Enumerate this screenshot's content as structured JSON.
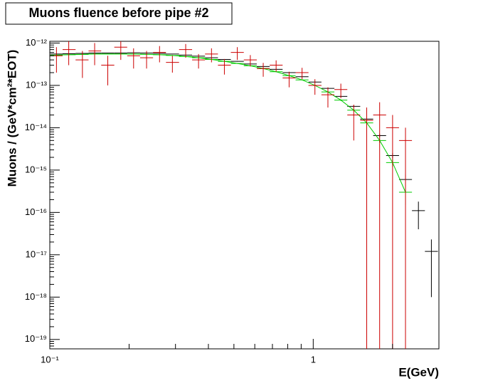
{
  "chart_data": {
    "type": "errorbar",
    "title": "Muons fluence before pipe #2",
    "x_label": "E(GeV)",
    "y_label": "Muons / (GeV*cm²*EOT)",
    "logx": true,
    "logy": true,
    "grid": false,
    "xlim": [
      0.1,
      3
    ],
    "ylim": [
      6e-20,
      1.1e-12
    ],
    "xticks": [
      {
        "value": 0.1,
        "label": "10⁻¹"
      },
      1
    ],
    "yticks": [
      {
        "value": 1e-19,
        "label": "10⁻¹⁹"
      },
      {
        "value": 1e-18,
        "label": "10⁻¹⁸"
      },
      {
        "value": 1e-17,
        "label": "10⁻¹⁷"
      },
      {
        "value": 1e-16,
        "label": "10⁻¹⁶"
      },
      {
        "value": 1e-15,
        "label": "10⁻¹⁵"
      },
      {
        "value": 1e-14,
        "label": "10⁻¹⁴"
      },
      {
        "value": 1e-13,
        "label": "10⁻¹³"
      },
      {
        "value": 1e-12,
        "label": "10⁻¹²"
      }
    ],
    "x": [
      0.106,
      0.118,
      0.133,
      0.148,
      0.166,
      0.186,
      0.208,
      0.233,
      0.261,
      0.292,
      0.328,
      0.367,
      0.411,
      0.46,
      0.515,
      0.577,
      0.646,
      0.723,
      0.81,
      0.907,
      1.015,
      1.137,
      1.273,
      1.425,
      1.596,
      1.787,
      2.001,
      2.24,
      2.508,
      2.809
    ],
    "series": [
      {
        "color": "#000000",
        "connect": false,
        "values": [
          5.5e-13,
          5.6e-13,
          5.7e-13,
          5.8e-13,
          5.8e-13,
          5.8e-13,
          5.9e-13,
          5.8e-13,
          5.7e-13,
          5.5e-13,
          5.2e-13,
          4.9e-13,
          4.5e-13,
          4.1e-13,
          3.7e-13,
          3.2e-13,
          2.8e-13,
          2.4e-13,
          2e-13,
          1.6e-13,
          1.2e-13,
          8.5e-14,
          5.5e-14,
          3.2e-14,
          1.6e-14,
          6.5e-15,
          2.2e-15,
          6e-16,
          1.1e-16,
          1.2e-17
        ],
        "errors": [
          1.5e-14,
          1.4e-14,
          1.3e-14,
          1.2e-14,
          1.1e-14,
          1e-14,
          1e-14,
          9e-15,
          9e-15,
          8e-15,
          8e-15,
          7e-15,
          7e-15,
          6e-15,
          6e-15,
          5e-15,
          5e-15,
          4e-15,
          4e-15,
          3e-15,
          3e-15,
          2.5e-15,
          2e-15,
          1.5e-15,
          1e-15,
          6e-16,
          3e-16,
          2e-16,
          7e-17,
          1.1e-17
        ]
      },
      {
        "color": "#00cc00",
        "connect": true,
        "values": [
          5.2e-13,
          5.3e-13,
          5.4e-13,
          5.5e-13,
          5.5e-13,
          5.5e-13,
          5.5e-13,
          5.4e-13,
          5.3e-13,
          5.1e-13,
          4.8e-13,
          4.5e-13,
          4.1e-13,
          3.7e-13,
          3.3e-13,
          2.9e-13,
          2.5e-13,
          2.1e-13,
          1.7e-13,
          1.35e-13,
          1e-13,
          7e-14,
          4.5e-14,
          2.6e-14,
          1.3e-14,
          5e-15,
          1.5e-15,
          3e-16,
          null,
          null
        ],
        "errors": [
          1.2e-14,
          1.2e-14,
          1.1e-14,
          1.1e-14,
          1e-14,
          1e-14,
          1e-14,
          9e-15,
          9e-15,
          8e-15,
          8e-15,
          7e-15,
          7e-15,
          6e-15,
          6e-15,
          5e-15,
          5e-15,
          4e-15,
          4e-15,
          3e-15,
          3e-15,
          2.5e-15,
          2e-15,
          1.5e-15,
          1e-15,
          6e-16,
          3e-16,
          1.5e-16,
          null,
          null
        ]
      },
      {
        "color": "#cc0000",
        "connect": false,
        "values": [
          5e-13,
          7e-13,
          4e-13,
          6.5e-13,
          3e-13,
          8e-13,
          5e-13,
          4.5e-13,
          6e-13,
          3.5e-13,
          7e-13,
          4e-13,
          5.5e-13,
          3e-13,
          6e-13,
          4e-13,
          2.5e-13,
          3e-13,
          1.5e-13,
          2e-13,
          1e-13,
          6e-14,
          8e-14,
          2e-14,
          1.5e-14,
          2e-14,
          1e-14,
          5e-15,
          null,
          null
        ],
        "errors": [
          3e-13,
          4e-13,
          2.5e-13,
          3.5e-13,
          2e-13,
          4e-13,
          2.5e-13,
          2e-13,
          2.5e-13,
          1.5e-13,
          2.5e-13,
          1.5e-13,
          2e-13,
          1.2e-13,
          2e-13,
          1.2e-13,
          9e-14,
          9e-14,
          6e-14,
          6e-14,
          4e-14,
          3e-14,
          3e-14,
          1.5e-14,
          1.5e-14,
          2e-14,
          1e-14,
          5e-15,
          null,
          null
        ]
      }
    ]
  }
}
